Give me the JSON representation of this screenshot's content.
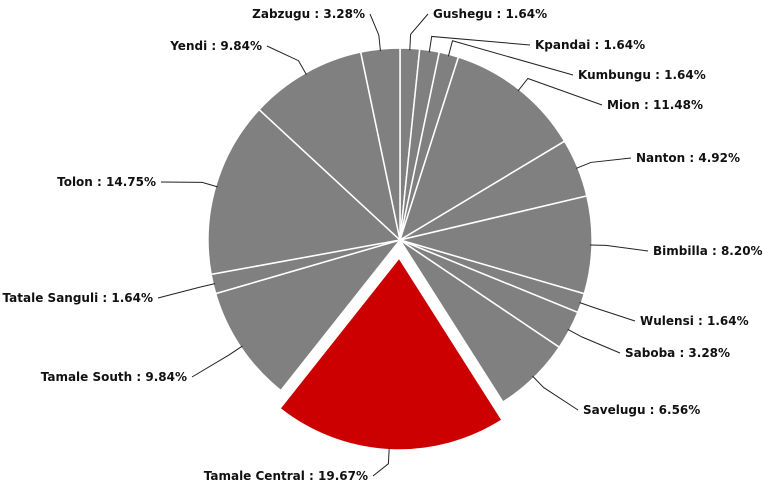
{
  "chart_data": {
    "type": "pie",
    "categories": [
      "Gushegu",
      "Kpandai",
      "Kumbungu",
      "Mion",
      "Nanton",
      "Bimbilla",
      "Wulensi",
      "Saboba",
      "Savelugu",
      "Tamale Central",
      "Tamale South",
      "Tatale Sanguli",
      "Tolon",
      "Yendi",
      "Zabzugu"
    ],
    "values": [
      1.64,
      1.64,
      1.64,
      11.48,
      4.92,
      8.2,
      1.64,
      3.28,
      6.56,
      19.67,
      9.84,
      1.64,
      14.75,
      9.84,
      3.28
    ],
    "value_labels": [
      "1.64%",
      "1.64%",
      "1.64%",
      "11.48%",
      "4.92%",
      "8.20%",
      "1.64%",
      "3.28%",
      "6.56%",
      "19.67%",
      "9.84%",
      "1.64%",
      "14.75%",
      "9.84%",
      "3.28%"
    ],
    "label_separator": " : ",
    "colors": [
      "#808080",
      "#808080",
      "#808080",
      "#808080",
      "#808080",
      "#808080",
      "#808080",
      "#808080",
      "#808080",
      "#cc0000",
      "#808080",
      "#808080",
      "#808080",
      "#808080",
      "#808080"
    ],
    "exploded": "Tamale Central"
  }
}
